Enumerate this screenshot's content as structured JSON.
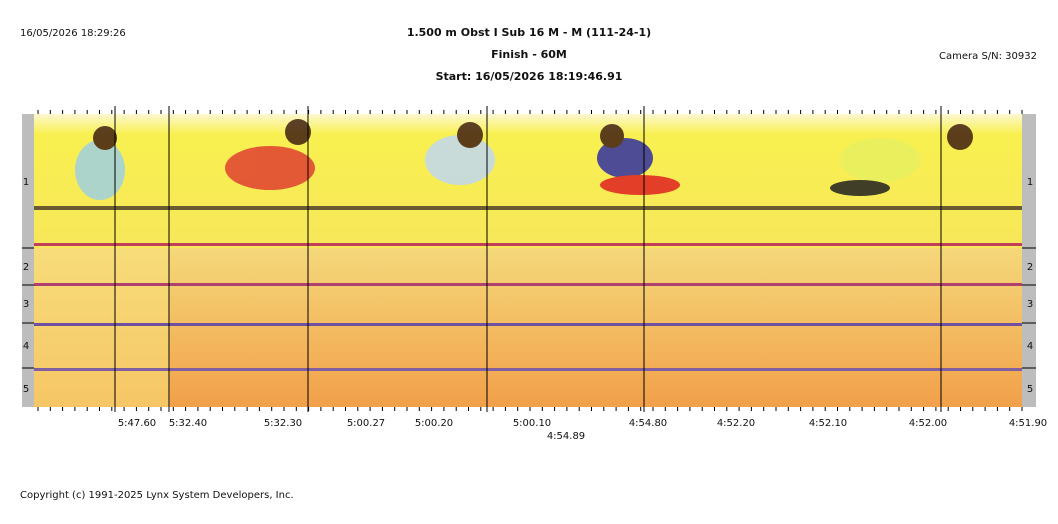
{
  "header": {
    "printed_at": "16/05/2026 18:29:26",
    "title": "1.500 m Obst I Sub 16 M - M (111-24-1)",
    "subtitle": "Finish - 60M",
    "start": "Start: 16/05/2026 18:19:46.91",
    "camera": "Camera S/N: 30932"
  },
  "lanes": [
    "1",
    "2",
    "3",
    "4",
    "5"
  ],
  "time_labels": [
    "5:47.60",
    "5:32.40",
    "5:32.30",
    "5:00.27",
    "5:00.20",
    "5:00.10",
    "4:54.89",
    "4:54.80",
    "4:52.20",
    "4:52.10",
    "4:52.00",
    "4:51.90"
  ],
  "footer": {
    "copyright": "Copyright (c) 1991-2025 Lynx System Developers, Inc."
  }
}
